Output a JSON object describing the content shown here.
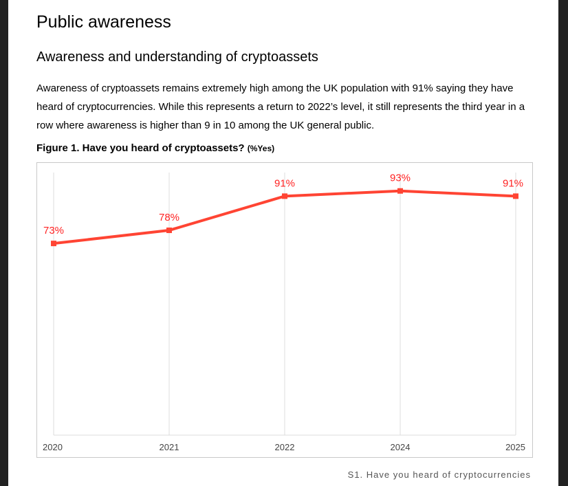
{
  "heading": "Public awareness",
  "subheading": "Awareness and understanding of cryptoassets",
  "paragraph": "Awareness of cryptoassets remains extremely high among the UK population with 91% saying they have heard of cryptocurrencies. While this represents a return to 2022’s level, it still represents the third year in a row where awareness is higher than 9 in 10 among the UK general public.",
  "figure_title": "Figure 1. Have you heard of cryptoassets?",
  "figure_unit": "(%Yes)",
  "source": "S1. Have you heard of cryptocurrencies",
  "chart_data": {
    "type": "line",
    "categories": [
      "2020",
      "2021",
      "2022",
      "2024",
      "2025"
    ],
    "values": [
      73,
      78,
      91,
      93,
      91
    ],
    "data_labels": [
      "73%",
      "78%",
      "91%",
      "93%",
      "91%"
    ],
    "ylim": [
      0,
      100
    ],
    "grid": "vertical",
    "color": "#ff4433",
    "label_color": "#ff2222"
  }
}
